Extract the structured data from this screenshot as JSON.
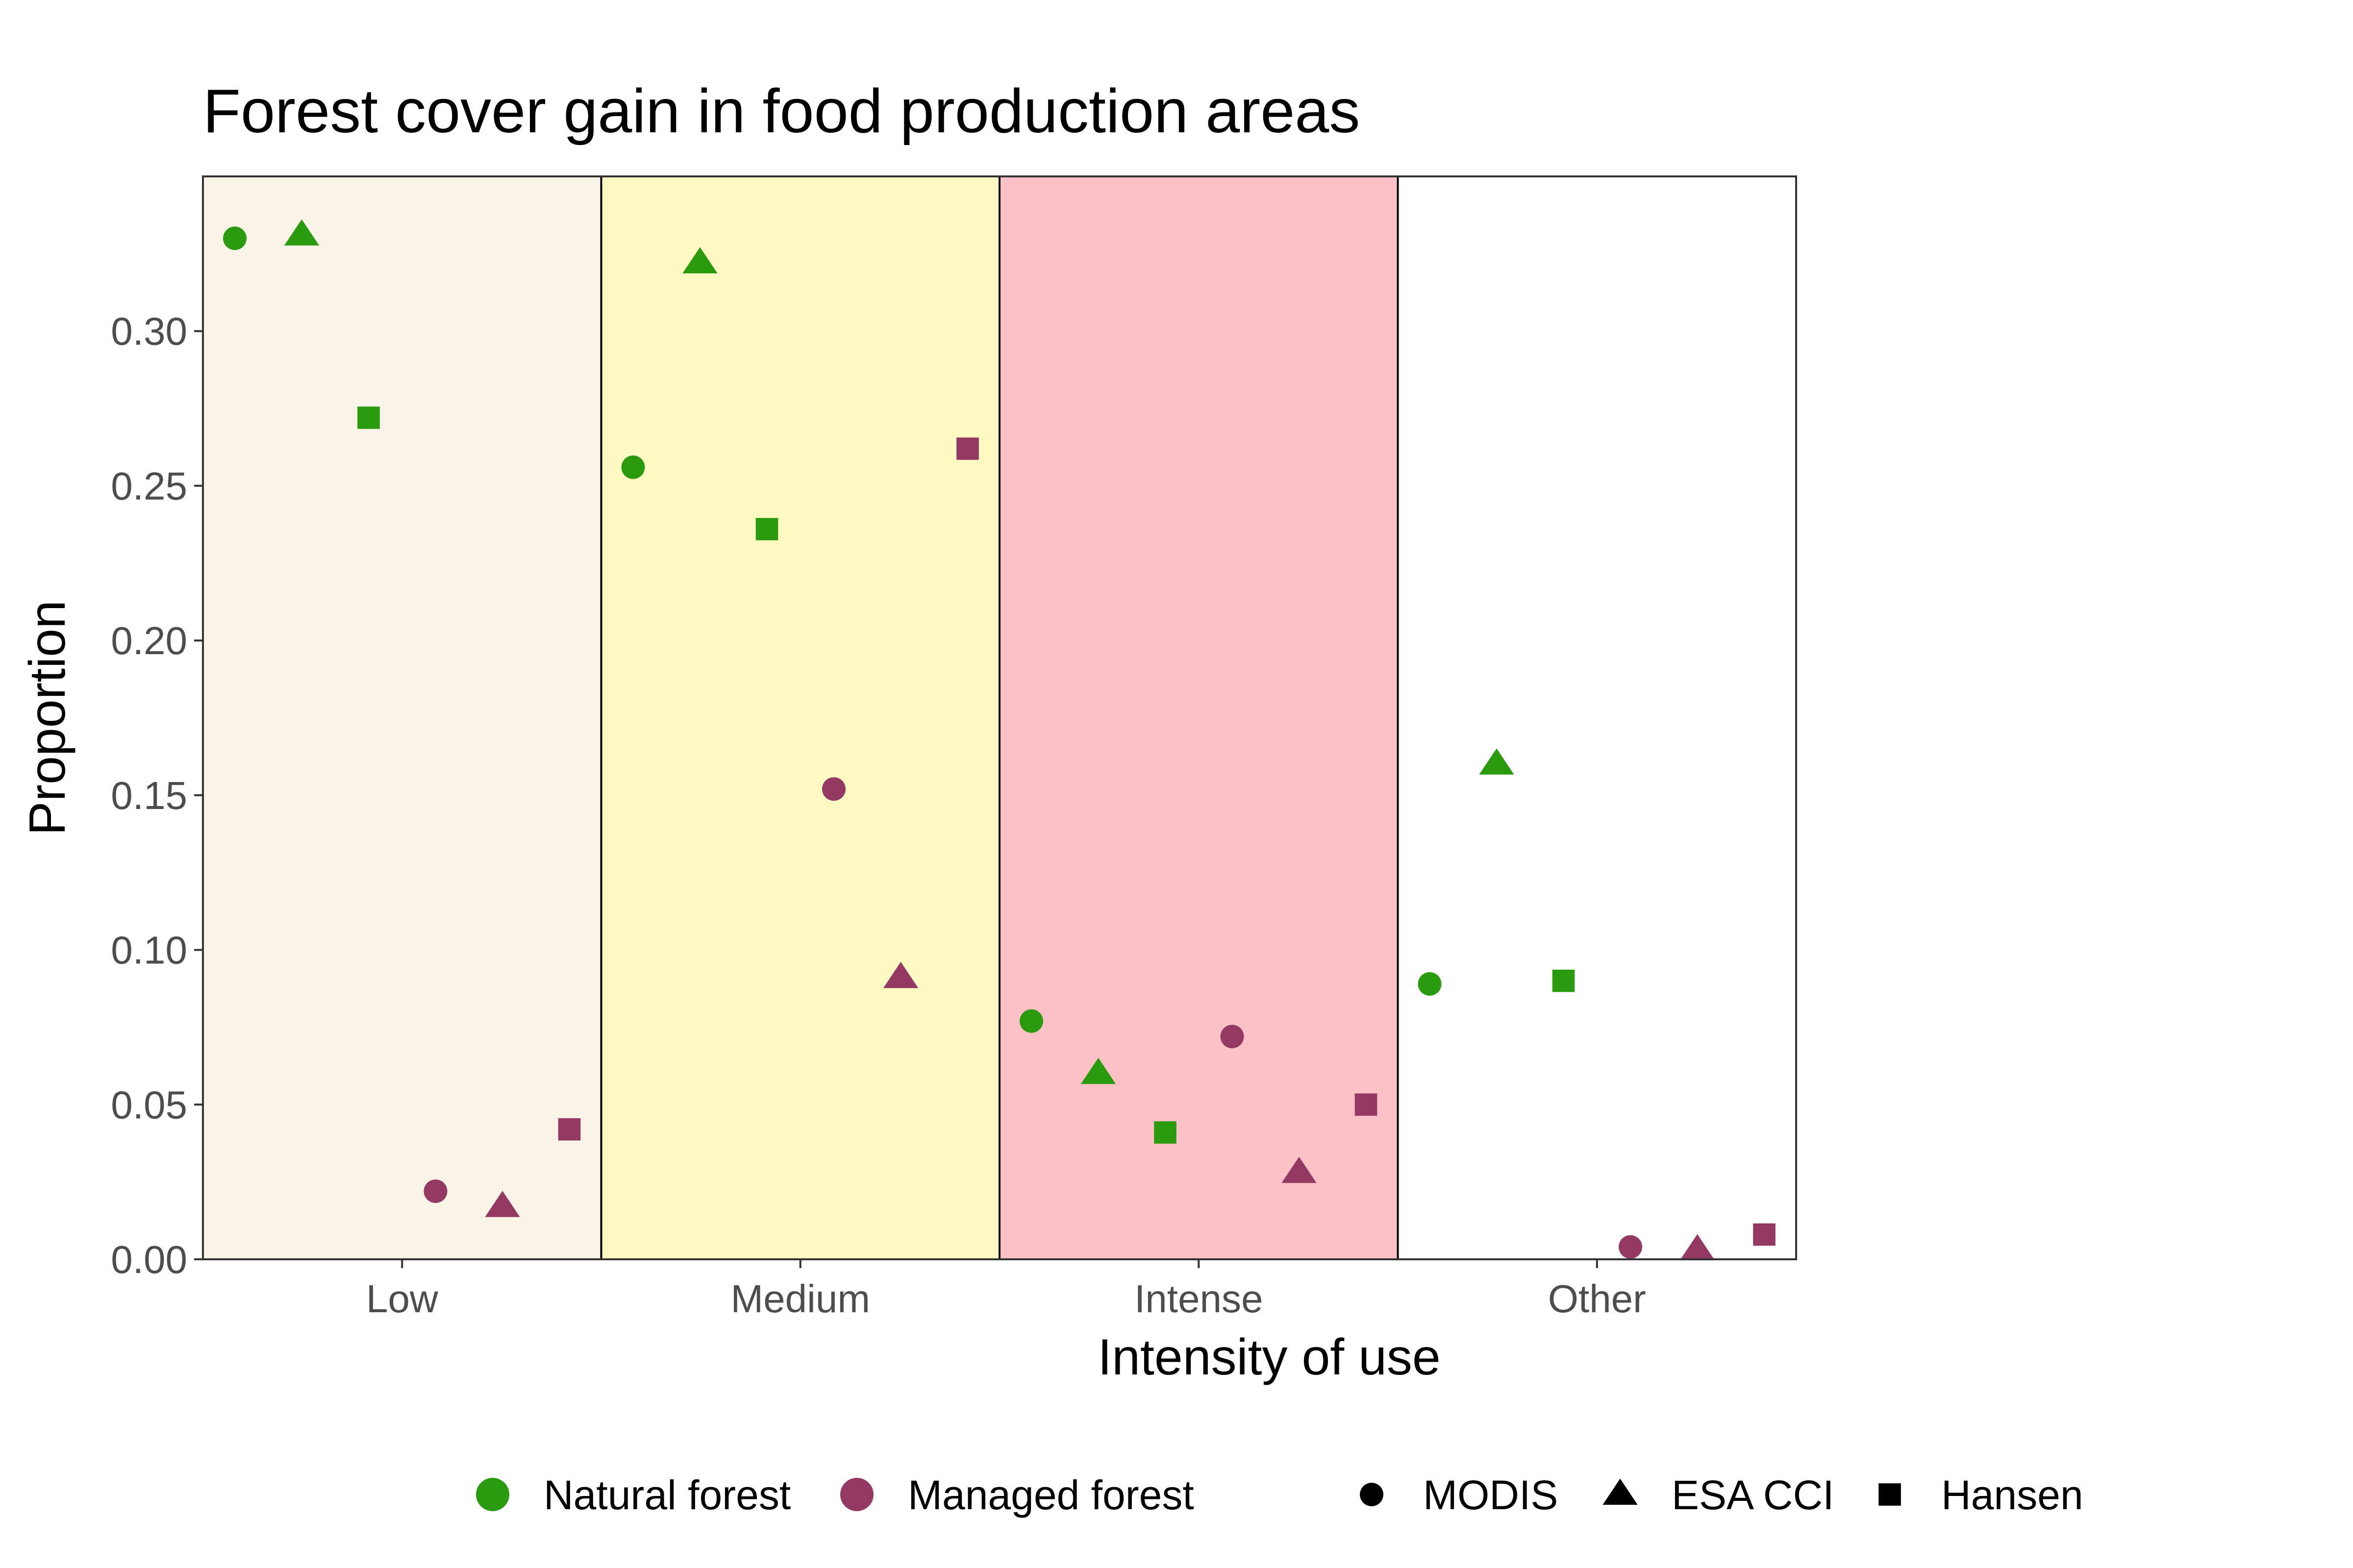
{
  "chart_data": {
    "type": "scatter",
    "title": "Forest cover gain in food production areas",
    "xlabel": "Intensity of use",
    "ylabel": "Proportion",
    "ylim": [
      0,
      0.35
    ],
    "y_ticks": [
      "0.00",
      "0.05",
      "0.10",
      "0.15",
      "0.20",
      "0.25",
      "0.30"
    ],
    "categories": [
      {
        "name": "Low",
        "bg": "#faf3e8"
      },
      {
        "name": "Medium",
        "bg": "#fef8c2"
      },
      {
        "name": "Intense",
        "bg": "#fcc0c7"
      },
      {
        "name": "Other",
        "bg": "#ffffff"
      }
    ],
    "colors": {
      "Natural forest": "#2a9b0e",
      "Managed forest": "#943a62"
    },
    "shapes": {
      "MODIS": "circle",
      "ESA CCI": "triangle",
      "Hansen": "square"
    },
    "points": [
      {
        "category": "Low",
        "forest": "Natural forest",
        "dataset": "MODIS",
        "value": 0.33
      },
      {
        "category": "Low",
        "forest": "Natural forest",
        "dataset": "ESA CCI",
        "value": 0.331
      },
      {
        "category": "Low",
        "forest": "Natural forest",
        "dataset": "Hansen",
        "value": 0.272
      },
      {
        "category": "Low",
        "forest": "Managed forest",
        "dataset": "MODIS",
        "value": 0.022
      },
      {
        "category": "Low",
        "forest": "Managed forest",
        "dataset": "ESA CCI",
        "value": 0.017
      },
      {
        "category": "Low",
        "forest": "Managed forest",
        "dataset": "Hansen",
        "value": 0.042
      },
      {
        "category": "Medium",
        "forest": "Natural forest",
        "dataset": "MODIS",
        "value": 0.256
      },
      {
        "category": "Medium",
        "forest": "Natural forest",
        "dataset": "ESA CCI",
        "value": 0.322
      },
      {
        "category": "Medium",
        "forest": "Natural forest",
        "dataset": "Hansen",
        "value": 0.236
      },
      {
        "category": "Medium",
        "forest": "Managed forest",
        "dataset": "MODIS",
        "value": 0.152
      },
      {
        "category": "Medium",
        "forest": "Managed forest",
        "dataset": "ESA CCI",
        "value": 0.091
      },
      {
        "category": "Medium",
        "forest": "Managed forest",
        "dataset": "Hansen",
        "value": 0.262
      },
      {
        "category": "Intense",
        "forest": "Natural forest",
        "dataset": "MODIS",
        "value": 0.077
      },
      {
        "category": "Intense",
        "forest": "Natural forest",
        "dataset": "ESA CCI",
        "value": 0.06
      },
      {
        "category": "Intense",
        "forest": "Natural forest",
        "dataset": "Hansen",
        "value": 0.041
      },
      {
        "category": "Intense",
        "forest": "Managed forest",
        "dataset": "MODIS",
        "value": 0.072
      },
      {
        "category": "Intense",
        "forest": "Managed forest",
        "dataset": "ESA CCI",
        "value": 0.028
      },
      {
        "category": "Intense",
        "forest": "Managed forest",
        "dataset": "Hansen",
        "value": 0.05
      },
      {
        "category": "Other",
        "forest": "Natural forest",
        "dataset": "MODIS",
        "value": 0.089
      },
      {
        "category": "Other",
        "forest": "Natural forest",
        "dataset": "ESA CCI",
        "value": 0.16
      },
      {
        "category": "Other",
        "forest": "Natural forest",
        "dataset": "Hansen",
        "value": 0.09
      },
      {
        "category": "Other",
        "forest": "Managed forest",
        "dataset": "MODIS",
        "value": 0.004
      },
      {
        "category": "Other",
        "forest": "Managed forest",
        "dataset": "ESA CCI",
        "value": 0.003
      },
      {
        "category": "Other",
        "forest": "Managed forest",
        "dataset": "Hansen",
        "value": 0.008
      }
    ],
    "legend": {
      "position": "bottom",
      "color_items": [
        "Natural forest",
        "Managed forest"
      ],
      "shape_items": [
        "MODIS",
        "ESA CCI",
        "Hansen"
      ]
    },
    "grid": false
  }
}
